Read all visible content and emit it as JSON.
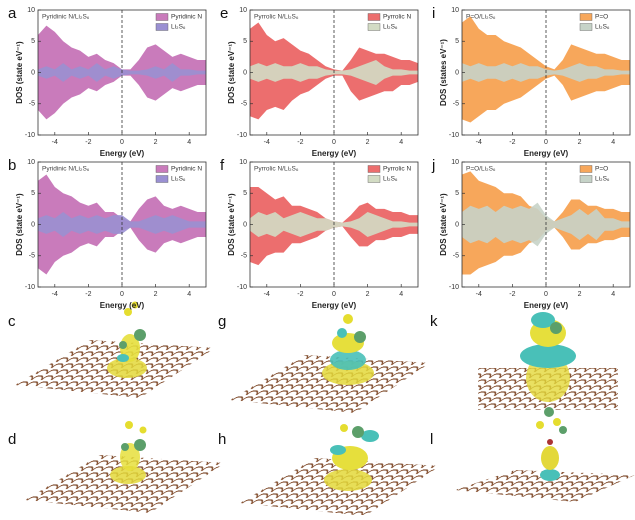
{
  "chart_data": [
    {
      "panel": "a",
      "type": "area",
      "annotation": "Pyridinic N/Li₂S₆",
      "x_label": "Energy (eV)",
      "y_label": "DOS (state eV⁻¹)",
      "x": [
        -5,
        -4.5,
        -4,
        -3.5,
        -3,
        -2.5,
        -2,
        -1.5,
        -1,
        -0.5,
        0,
        0.5,
        1,
        1.5,
        2,
        2.5,
        3,
        3.5,
        4,
        4.5,
        5
      ],
      "xlim": [
        -5,
        5
      ],
      "ylim": [
        -10,
        10
      ],
      "xticks": [
        -4,
        -2,
        0,
        2,
        4
      ],
      "yticks": [
        -10,
        -5,
        0,
        5,
        10
      ],
      "reference_line_x": 0,
      "legend": "upper right",
      "series": [
        {
          "name": "Pyridinic N",
          "color": "#c97bbb",
          "values": [
            6,
            7.5,
            6.5,
            5,
            4,
            3.5,
            2.5,
            3,
            2,
            1.5,
            0.5,
            0.5,
            2,
            4,
            4.5,
            3.5,
            2.5,
            3,
            2.5,
            2,
            2
          ],
          "values_down": [
            -6,
            -7.5,
            -6.5,
            -5,
            -4,
            -3.5,
            -2.5,
            -3,
            -2,
            -1.5,
            -0.5,
            -0.5,
            -2,
            -4,
            -4.5,
            -3.5,
            -2.5,
            -3,
            -2.5,
            -2,
            -2
          ]
        },
        {
          "name": "Li₂S₆",
          "color": "#9a90d2",
          "values": [
            0.5,
            1,
            0.5,
            1.5,
            0.5,
            1,
            0.5,
            1.5,
            0.5,
            1,
            0.5,
            0.3,
            0.3,
            0.5,
            1,
            0.5,
            1.5,
            0.5,
            0.5,
            0.3,
            0.3
          ],
          "values_down": [
            -0.5,
            -1,
            -0.5,
            -1.5,
            -0.5,
            -1,
            -0.5,
            -1.5,
            -0.5,
            -1,
            -0.5,
            -0.3,
            -0.3,
            -0.5,
            -1,
            -0.5,
            -1.5,
            -0.5,
            -0.5,
            -0.3,
            -0.3
          ]
        }
      ]
    },
    {
      "panel": "e",
      "type": "area",
      "annotation": "Pyrrolic N/Li₂S₆",
      "x_label": "Energy (eV)",
      "y_label": "DOS (state eV⁻¹)",
      "x": [
        -5,
        -4.5,
        -4,
        -3.5,
        -3,
        -2.5,
        -2,
        -1.5,
        -1,
        -0.5,
        0,
        0.5,
        1,
        1.5,
        2,
        2.5,
        3,
        3.5,
        4,
        4.5,
        5
      ],
      "xlim": [
        -5,
        5
      ],
      "ylim": [
        -10,
        10
      ],
      "xticks": [
        -4,
        -2,
        0,
        2,
        4
      ],
      "yticks": [
        -10,
        -5,
        0,
        5,
        10
      ],
      "reference_line_x": 0,
      "legend": "upper right",
      "series": [
        {
          "name": "Pyrrolic N",
          "color": "#ec6e6e",
          "values": [
            7,
            8,
            6,
            5,
            5.5,
            4.5,
            3.5,
            3,
            2,
            1,
            0.5,
            0.3,
            2,
            4,
            3.5,
            3,
            3,
            2.5,
            2,
            2,
            1.5
          ],
          "values_down": [
            -7,
            -7.5,
            -6,
            -5.5,
            -6,
            -4.5,
            -3.5,
            -3,
            -2,
            -1,
            -0.5,
            -0.5,
            -3,
            -4.5,
            -4,
            -3.5,
            -3,
            -3,
            -2,
            -2,
            -1.5
          ]
        },
        {
          "name": "Li₂S₆",
          "color": "#d3dcc4",
          "values": [
            1,
            1.5,
            1,
            1.5,
            1,
            1,
            1.5,
            1,
            1,
            0.5,
            0.3,
            0.3,
            0.5,
            1,
            1.5,
            2,
            1,
            0.5,
            0.5,
            0.3,
            0.3
          ],
          "values_down": [
            -1,
            -1.5,
            -1,
            -1.5,
            -1,
            -1,
            -1.5,
            -1,
            -1,
            -0.5,
            -0.3,
            -0.3,
            -0.5,
            -1,
            -1.5,
            -2,
            -1,
            -0.5,
            -0.5,
            -0.3,
            -0.3
          ]
        }
      ]
    },
    {
      "panel": "i",
      "type": "area",
      "annotation": "P=O/Li₂S₆",
      "x_label": "Energy (eV)",
      "y_label": "DOS (states eV⁻¹)",
      "x": [
        -5,
        -4.5,
        -4,
        -3.5,
        -3,
        -2.5,
        -2,
        -1.5,
        -1,
        -0.5,
        0,
        0.5,
        1,
        1.5,
        2,
        2.5,
        3,
        3.5,
        4,
        4.5,
        5
      ],
      "xlim": [
        -5,
        5
      ],
      "ylim": [
        -10,
        10
      ],
      "xticks": [
        -4,
        -2,
        0,
        2,
        4
      ],
      "yticks": [
        -10,
        -5,
        0,
        5,
        10
      ],
      "reference_line_x": 0,
      "legend": "upper right",
      "series": [
        {
          "name": "P=O",
          "color": "#f7a75b",
          "values": [
            8,
            9,
            7,
            6,
            6,
            5,
            4.5,
            4,
            3,
            2,
            1,
            0.5,
            2,
            4.5,
            4,
            3.5,
            3,
            3,
            2.5,
            2,
            2
          ],
          "values_down": [
            -7.5,
            -8,
            -7,
            -6,
            -6,
            -5,
            -4.5,
            -4,
            -3,
            -2,
            -1,
            -0.5,
            -2,
            -4.5,
            -4,
            -3.5,
            -3,
            -3,
            -2.5,
            -2,
            -2
          ]
        },
        {
          "name": "Li₂S₆",
          "color": "#c6d3c8",
          "values": [
            1.5,
            1,
            1.5,
            1,
            1,
            1.5,
            1,
            1.5,
            1,
            1,
            0.5,
            0.3,
            0.5,
            1,
            1.5,
            1,
            1,
            0.5,
            0.5,
            0.3,
            0.3
          ],
          "values_down": [
            -1.5,
            -1,
            -1.5,
            -1,
            -1,
            -1.5,
            -1,
            -1.5,
            -1,
            -1,
            -0.5,
            -0.3,
            -0.5,
            -1,
            -1.5,
            -1,
            -1,
            -0.5,
            -0.5,
            -0.3,
            -0.3
          ]
        }
      ]
    },
    {
      "panel": "b",
      "type": "area",
      "annotation": "Pyridinic N/Li₂S₆",
      "x_label": "Energy (eV)",
      "y_label": "DOS (state eV⁻¹)",
      "x": [
        -5,
        -4.5,
        -4,
        -3.5,
        -3,
        -2.5,
        -2,
        -1.5,
        -1,
        -0.5,
        0,
        0.5,
        1,
        1.5,
        2,
        2.5,
        3,
        3.5,
        4,
        4.5,
        5
      ],
      "xlim": [
        -5,
        5
      ],
      "ylim": [
        -10,
        10
      ],
      "xticks": [
        -4,
        -2,
        0,
        2,
        4
      ],
      "yticks": [
        -10,
        -5,
        0,
        5,
        10
      ],
      "reference_line_x": 0,
      "legend": "upper right",
      "series": [
        {
          "name": "Pyridinic N",
          "color": "#c97bbb",
          "values": [
            7,
            8,
            6,
            5,
            4.5,
            3.5,
            3,
            3.5,
            2,
            2,
            1,
            0.5,
            2.5,
            4,
            4.5,
            3,
            2.5,
            3,
            2.5,
            2,
            2
          ],
          "values_down": [
            -7,
            -8,
            -6,
            -5,
            -4.5,
            -3.5,
            -3,
            -3.5,
            -2,
            -2,
            -1,
            -0.5,
            -2.5,
            -4,
            -4.5,
            -3,
            -2.5,
            -3,
            -2.5,
            -2,
            -2
          ]
        },
        {
          "name": "Li₂S₆",
          "color": "#9a90d2",
          "values": [
            1,
            1.5,
            1,
            2,
            1,
            1.5,
            1,
            1.5,
            1,
            1.5,
            1.5,
            0.5,
            0.5,
            1,
            1.5,
            1,
            1.5,
            1,
            0.5,
            0.5,
            0.5
          ],
          "values_down": [
            -1,
            -1.5,
            -1,
            -2,
            -1,
            -1.5,
            -1,
            -1.5,
            -1,
            -1.5,
            -1.5,
            -0.5,
            -0.5,
            -1,
            -1.5,
            -1,
            -1.5,
            -1,
            -0.5,
            -0.5,
            -0.5
          ]
        }
      ]
    },
    {
      "panel": "f",
      "type": "area",
      "annotation": "Pyrrolic N/Li₂S₆",
      "x_label": "Energy (eV)",
      "y_label": "DOS (state eV⁻¹)",
      "x": [
        -5,
        -4.5,
        -4,
        -3.5,
        -3,
        -2.5,
        -2,
        -1.5,
        -1,
        -0.5,
        0,
        0.5,
        1,
        1.5,
        2,
        2.5,
        3,
        3.5,
        4,
        4.5,
        5
      ],
      "xlim": [
        -5,
        5
      ],
      "ylim": [
        -10,
        10
      ],
      "xticks": [
        -4,
        -2,
        0,
        2,
        4
      ],
      "yticks": [
        -10,
        -5,
        0,
        5,
        10
      ],
      "reference_line_x": 0,
      "legend": "upper right",
      "series": [
        {
          "name": "Pyrrolic N",
          "color": "#ec6e6e",
          "values": [
            6,
            6,
            5,
            4,
            4.5,
            3,
            3,
            2.5,
            2,
            1,
            0.5,
            0.3,
            1.5,
            3,
            3.5,
            2.5,
            2.5,
            2,
            2,
            1.5,
            1.5
          ],
          "values_down": [
            -6,
            -6.5,
            -5,
            -4.5,
            -4.5,
            -3,
            -3,
            -2.5,
            -2,
            -1,
            -0.5,
            -0.3,
            -2,
            -3.5,
            -3.5,
            -2.5,
            -2.5,
            -2,
            -2,
            -1.5,
            -1.5
          ]
        },
        {
          "name": "Li₂S₆",
          "color": "#d3dcc4",
          "values": [
            1,
            2,
            1.5,
            2,
            1,
            1.5,
            2,
            1.5,
            1,
            1,
            0.5,
            0.3,
            0.5,
            1,
            2,
            1.5,
            1,
            0.5,
            0.5,
            0.3,
            0.3
          ],
          "values_down": [
            -1,
            -2,
            -1.5,
            -2,
            -1,
            -1.5,
            -2,
            -1.5,
            -1,
            -1,
            -0.5,
            -0.3,
            -0.5,
            -1,
            -2,
            -1.5,
            -1,
            -0.5,
            -0.5,
            -0.3,
            -0.3
          ]
        }
      ]
    },
    {
      "panel": "j",
      "type": "area",
      "annotation": "P=O/Li₂S₆",
      "x_label": "Energy (eV)",
      "y_label": "DOS (state eV⁻¹)",
      "x": [
        -5,
        -4.5,
        -4,
        -3.5,
        -3,
        -2.5,
        -2,
        -1.5,
        -1,
        -0.5,
        0,
        0.5,
        1,
        1.5,
        2,
        2.5,
        3,
        3.5,
        4,
        4.5,
        5
      ],
      "xlim": [
        -5,
        5
      ],
      "ylim": [
        -10,
        10
      ],
      "xticks": [
        -4,
        -2,
        0,
        2,
        4
      ],
      "yticks": [
        -10,
        -5,
        0,
        5,
        10
      ],
      "reference_line_x": 0,
      "legend": "upper right",
      "series": [
        {
          "name": "P=O",
          "color": "#f7a75b",
          "values": [
            8,
            8.5,
            7,
            6.5,
            6,
            5,
            5,
            4.5,
            3,
            2.5,
            1,
            0.5,
            2,
            4,
            4,
            3,
            3,
            2.5,
            2.5,
            2,
            2
          ],
          "values_down": [
            -8,
            -8,
            -7,
            -6.5,
            -6,
            -5,
            -5,
            -4.5,
            -3,
            -2.5,
            -1,
            -0.5,
            -2,
            -4,
            -4,
            -3,
            -3,
            -2.5,
            -2.5,
            -2,
            -2
          ]
        },
        {
          "name": "Li₂S₆",
          "color": "#c6d3c8",
          "values": [
            2,
            3,
            2.5,
            3,
            2,
            3,
            2.5,
            3,
            2.5,
            3.5,
            1.5,
            0.5,
            1,
            1.5,
            2.5,
            1.5,
            2.5,
            1,
            1,
            0.5,
            0.5
          ],
          "values_down": [
            -2,
            -3,
            -2.5,
            -3,
            -2,
            -3,
            -2.5,
            -3,
            -2.5,
            -3.5,
            -1.5,
            -0.5,
            -1,
            -1.5,
            -2.5,
            -1.5,
            -2.5,
            -1,
            -1,
            -0.5,
            -0.5
          ]
        }
      ]
    }
  ],
  "figure_panels": [
    "c",
    "g",
    "k",
    "d",
    "h",
    "l"
  ]
}
